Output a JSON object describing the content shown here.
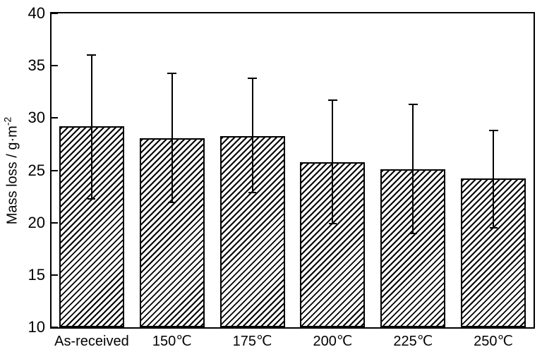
{
  "chart_data": {
    "type": "bar",
    "title": "",
    "categories": [
      "As-received",
      "150℃",
      "175℃",
      "200℃",
      "225℃",
      "250℃"
    ],
    "values": [
      29.2,
      28.1,
      28.3,
      25.8,
      25.1,
      24.2
    ],
    "error_high": [
      36.0,
      34.3,
      33.8,
      31.7,
      31.3,
      28.8
    ],
    "error_low": [
      22.3,
      21.9,
      22.9,
      19.9,
      19.0,
      19.5
    ],
    "xlabel": "",
    "ylabel": "Mass loss / g·m⁻²",
    "ylabel_base": "Mass loss / g·m",
    "ylabel_superscript": "-2",
    "ylim": [
      10,
      40
    ],
    "yticks": [
      10,
      15,
      20,
      25,
      30,
      35,
      40
    ],
    "grid": false,
    "legend": "none",
    "axis_color": "#000000",
    "bar_style": {
      "fill": "diagonal-hatch",
      "hatch_color": "#000000",
      "background_color": "#ffffff",
      "border_color": "#000000"
    }
  }
}
